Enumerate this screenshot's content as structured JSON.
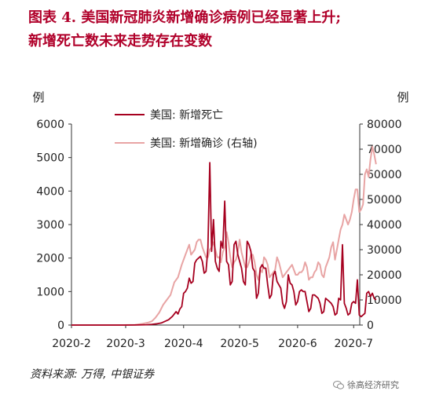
{
  "title": {
    "line1": "图表 4. 美国新冠肺炎新增确诊病例已经显著上升;",
    "line2": "新增死亡数未来走势存在变数"
  },
  "source": "资料来源: 万得, 中银证券",
  "watermark": "徐高经济研究",
  "chart_data": {
    "type": "line",
    "left_axis_label": "例",
    "right_axis_label": "例",
    "ylim_left": [
      0,
      6000
    ],
    "yticks_left": [
      0,
      1000,
      2000,
      3000,
      4000,
      5000,
      6000
    ],
    "ylim_right": [
      0,
      80000
    ],
    "yticks_right": [
      0,
      10000,
      20000,
      30000,
      40000,
      50000,
      60000,
      70000,
      80000
    ],
    "x_start": "2020-02-01",
    "x_ticks": [
      "2020-02-01",
      "2020-03-01",
      "2020-04-01",
      "2020-05-01",
      "2020-06-01",
      "2020-07-01"
    ],
    "x_tick_labels": [
      "2020-2",
      "2020-3",
      "2020-4",
      "2020-5",
      "2020-6",
      "2020-7"
    ],
    "series": [
      {
        "name": "美国: 新增死亡",
        "axis": "left",
        "color": "#a6001f",
        "points": [
          [
            "2020-02-01",
            0
          ],
          [
            "2020-02-29",
            0
          ],
          [
            "2020-03-07",
            2
          ],
          [
            "2020-03-12",
            10
          ],
          [
            "2020-03-15",
            20
          ],
          [
            "2020-03-18",
            40
          ],
          [
            "2020-03-20",
            60
          ],
          [
            "2020-03-22",
            110
          ],
          [
            "2020-03-24",
            160
          ],
          [
            "2020-03-26",
            260
          ],
          [
            "2020-03-28",
            400
          ],
          [
            "2020-03-29",
            330
          ],
          [
            "2020-03-30",
            480
          ],
          [
            "2020-03-31",
            550
          ],
          [
            "2020-04-01",
            950
          ],
          [
            "2020-04-02",
            1000
          ],
          [
            "2020-04-03",
            1100
          ],
          [
            "2020-04-04",
            1400
          ],
          [
            "2020-04-05",
            1250
          ],
          [
            "2020-04-06",
            1300
          ],
          [
            "2020-04-07",
            1850
          ],
          [
            "2020-04-08",
            1950
          ],
          [
            "2020-04-09",
            2000
          ],
          [
            "2020-04-10",
            2050
          ],
          [
            "2020-04-11",
            1900
          ],
          [
            "2020-04-12",
            1550
          ],
          [
            "2020-04-13",
            1600
          ],
          [
            "2020-04-14",
            2300
          ],
          [
            "2020-04-15",
            4850
          ],
          [
            "2020-04-16",
            2200
          ],
          [
            "2020-04-17",
            3150
          ],
          [
            "2020-04-18",
            1900
          ],
          [
            "2020-04-19",
            1700
          ],
          [
            "2020-04-20",
            1600
          ],
          [
            "2020-04-21",
            2500
          ],
          [
            "2020-04-22",
            2300
          ],
          [
            "2020-04-23",
            3700
          ],
          [
            "2020-04-24",
            1900
          ],
          [
            "2020-04-25",
            1800
          ],
          [
            "2020-04-26",
            1200
          ],
          [
            "2020-04-27",
            1300
          ],
          [
            "2020-04-28",
            2400
          ],
          [
            "2020-04-29",
            2500
          ],
          [
            "2020-04-30",
            2100
          ],
          [
            "2020-05-01",
            1900
          ],
          [
            "2020-05-02",
            1700
          ],
          [
            "2020-05-03",
            1300
          ],
          [
            "2020-05-04",
            1200
          ],
          [
            "2020-05-05",
            2500
          ],
          [
            "2020-05-06",
            2400
          ],
          [
            "2020-05-07",
            2200
          ],
          [
            "2020-05-08",
            1700
          ],
          [
            "2020-05-09",
            1600
          ],
          [
            "2020-05-10",
            800
          ],
          [
            "2020-05-11",
            950
          ],
          [
            "2020-05-12",
            1700
          ],
          [
            "2020-05-13",
            1800
          ],
          [
            "2020-05-14",
            1700
          ],
          [
            "2020-05-15",
            1700
          ],
          [
            "2020-05-16",
            1200
          ],
          [
            "2020-05-17",
            800
          ],
          [
            "2020-05-18",
            900
          ],
          [
            "2020-05-19",
            1500
          ],
          [
            "2020-05-20",
            1600
          ],
          [
            "2020-05-21",
            1300
          ],
          [
            "2020-05-22",
            1200
          ],
          [
            "2020-05-23",
            1100
          ],
          [
            "2020-05-24",
            650
          ],
          [
            "2020-05-25",
            500
          ],
          [
            "2020-05-26",
            700
          ],
          [
            "2020-05-27",
            1500
          ],
          [
            "2020-05-28",
            1250
          ],
          [
            "2020-05-29",
            1200
          ],
          [
            "2020-05-30",
            1000
          ],
          [
            "2020-05-31",
            600
          ],
          [
            "2020-06-01",
            700
          ],
          [
            "2020-06-02",
            1000
          ],
          [
            "2020-06-03",
            1050
          ],
          [
            "2020-06-04",
            1000
          ],
          [
            "2020-06-05",
            1000
          ],
          [
            "2020-06-06",
            700
          ],
          [
            "2020-06-07",
            400
          ],
          [
            "2020-06-08",
            500
          ],
          [
            "2020-06-09",
            900
          ],
          [
            "2020-06-10",
            900
          ],
          [
            "2020-06-11",
            850
          ],
          [
            "2020-06-12",
            800
          ],
          [
            "2020-06-13",
            650
          ],
          [
            "2020-06-14",
            350
          ],
          [
            "2020-06-15",
            400
          ],
          [
            "2020-06-16",
            800
          ],
          [
            "2020-06-17",
            750
          ],
          [
            "2020-06-18",
            700
          ],
          [
            "2020-06-19",
            650
          ],
          [
            "2020-06-20",
            550
          ],
          [
            "2020-06-21",
            300
          ],
          [
            "2020-06-22",
            350
          ],
          [
            "2020-06-23",
            800
          ],
          [
            "2020-06-24",
            750
          ],
          [
            "2020-06-25",
            2400
          ],
          [
            "2020-06-26",
            650
          ],
          [
            "2020-06-27",
            500
          ],
          [
            "2020-06-28",
            300
          ],
          [
            "2020-06-29",
            350
          ],
          [
            "2020-06-30",
            650
          ],
          [
            "2020-07-01",
            700
          ],
          [
            "2020-07-02",
            650
          ],
          [
            "2020-07-03",
            1350
          ],
          [
            "2020-07-04",
            300
          ],
          [
            "2020-07-05",
            250
          ],
          [
            "2020-07-06",
            300
          ],
          [
            "2020-07-07",
            350
          ],
          [
            "2020-07-08",
            950
          ],
          [
            "2020-07-09",
            1000
          ],
          [
            "2020-07-10",
            850
          ],
          [
            "2020-07-11",
            950
          ],
          [
            "2020-07-12",
            800
          ],
          [
            "2020-07-13",
            750
          ]
        ]
      },
      {
        "name": "美国: 新增确诊 (右轴)",
        "axis": "right",
        "color": "#e8a4a4",
        "points": [
          [
            "2020-02-01",
            0
          ],
          [
            "2020-02-29",
            0
          ],
          [
            "2020-03-06",
            100
          ],
          [
            "2020-03-10",
            500
          ],
          [
            "2020-03-13",
            1000
          ],
          [
            "2020-03-15",
            1500
          ],
          [
            "2020-03-17",
            3000
          ],
          [
            "2020-03-19",
            5000
          ],
          [
            "2020-03-21",
            8000
          ],
          [
            "2020-03-23",
            10000
          ],
          [
            "2020-03-25",
            12000
          ],
          [
            "2020-03-27",
            17000
          ],
          [
            "2020-03-29",
            19000
          ],
          [
            "2020-03-31",
            24000
          ],
          [
            "2020-04-02",
            28000
          ],
          [
            "2020-04-04",
            32000
          ],
          [
            "2020-04-05",
            28000
          ],
          [
            "2020-04-07",
            30000
          ],
          [
            "2020-04-08",
            33000
          ],
          [
            "2020-04-09",
            34000
          ],
          [
            "2020-04-10",
            34000
          ],
          [
            "2020-04-11",
            31000
          ],
          [
            "2020-04-12",
            29000
          ],
          [
            "2020-04-13",
            27000
          ],
          [
            "2020-04-14",
            27000
          ],
          [
            "2020-04-15",
            30000
          ],
          [
            "2020-04-16",
            31000
          ],
          [
            "2020-04-17",
            33000
          ],
          [
            "2020-04-18",
            30000
          ],
          [
            "2020-04-19",
            27000
          ],
          [
            "2020-04-20",
            27000
          ],
          [
            "2020-04-21",
            25000
          ],
          [
            "2020-04-22",
            29000
          ],
          [
            "2020-04-23",
            31000
          ],
          [
            "2020-04-24",
            37000
          ],
          [
            "2020-04-25",
            33000
          ],
          [
            "2020-04-26",
            27000
          ],
          [
            "2020-04-27",
            23000
          ],
          [
            "2020-04-28",
            25000
          ],
          [
            "2020-04-29",
            26000
          ],
          [
            "2020-04-30",
            29000
          ],
          [
            "2020-05-01",
            34000
          ],
          [
            "2020-05-02",
            29000
          ],
          [
            "2020-05-03",
            26000
          ],
          [
            "2020-05-04",
            23000
          ],
          [
            "2020-05-05",
            23000
          ],
          [
            "2020-05-06",
            25000
          ],
          [
            "2020-05-07",
            28000
          ],
          [
            "2020-05-08",
            28000
          ],
          [
            "2020-05-09",
            25000
          ],
          [
            "2020-05-10",
            20000
          ],
          [
            "2020-05-11",
            18000
          ],
          [
            "2020-05-12",
            22000
          ],
          [
            "2020-05-13",
            21000
          ],
          [
            "2020-05-14",
            27000
          ],
          [
            "2020-05-15",
            26000
          ],
          [
            "2020-05-16",
            24000
          ],
          [
            "2020-05-17",
            19000
          ],
          [
            "2020-05-18",
            20000
          ],
          [
            "2020-05-19",
            21000
          ],
          [
            "2020-05-20",
            22000
          ],
          [
            "2020-05-21",
            27000
          ],
          [
            "2020-05-22",
            25000
          ],
          [
            "2020-05-23",
            22000
          ],
          [
            "2020-05-24",
            19000
          ],
          [
            "2020-05-25",
            20000
          ],
          [
            "2020-05-26",
            21000
          ],
          [
            "2020-05-27",
            22000
          ],
          [
            "2020-05-28",
            23000
          ],
          [
            "2020-05-29",
            24000
          ],
          [
            "2020-05-30",
            22000
          ],
          [
            "2020-05-31",
            20000
          ],
          [
            "2020-06-01",
            20000
          ],
          [
            "2020-06-02",
            21000
          ],
          [
            "2020-06-03",
            21000
          ],
          [
            "2020-06-04",
            22000
          ],
          [
            "2020-06-05",
            25000
          ],
          [
            "2020-06-06",
            23000
          ],
          [
            "2020-06-07",
            18000
          ],
          [
            "2020-06-08",
            19000
          ],
          [
            "2020-06-09",
            19000
          ],
          [
            "2020-06-10",
            21000
          ],
          [
            "2020-06-11",
            22000
          ],
          [
            "2020-06-12",
            25000
          ],
          [
            "2020-06-13",
            24000
          ],
          [
            "2020-06-14",
            20000
          ],
          [
            "2020-06-15",
            19000
          ],
          [
            "2020-06-16",
            23000
          ],
          [
            "2020-06-17",
            25000
          ],
          [
            "2020-06-18",
            27000
          ],
          [
            "2020-06-19",
            31000
          ],
          [
            "2020-06-20",
            33000
          ],
          [
            "2020-06-21",
            26000
          ],
          [
            "2020-06-22",
            30000
          ],
          [
            "2020-06-23",
            34000
          ],
          [
            "2020-06-24",
            38000
          ],
          [
            "2020-06-25",
            40000
          ],
          [
            "2020-06-26",
            44000
          ],
          [
            "2020-06-27",
            42000
          ],
          [
            "2020-06-28",
            40000
          ],
          [
            "2020-06-29",
            42000
          ],
          [
            "2020-06-30",
            45000
          ],
          [
            "2020-07-01",
            50000
          ],
          [
            "2020-07-02",
            54000
          ],
          [
            "2020-07-03",
            54000
          ],
          [
            "2020-07-04",
            45000
          ],
          [
            "2020-07-05",
            46000
          ],
          [
            "2020-07-06",
            48000
          ],
          [
            "2020-07-07",
            60000
          ],
          [
            "2020-07-08",
            62000
          ],
          [
            "2020-07-09",
            59000
          ],
          [
            "2020-07-10",
            66000
          ],
          [
            "2020-07-11",
            71000
          ],
          [
            "2020-07-12",
            68000
          ],
          [
            "2020-07-13",
            64000
          ]
        ]
      }
    ],
    "grid": false,
    "legend_placement": "top-left-inside"
  }
}
